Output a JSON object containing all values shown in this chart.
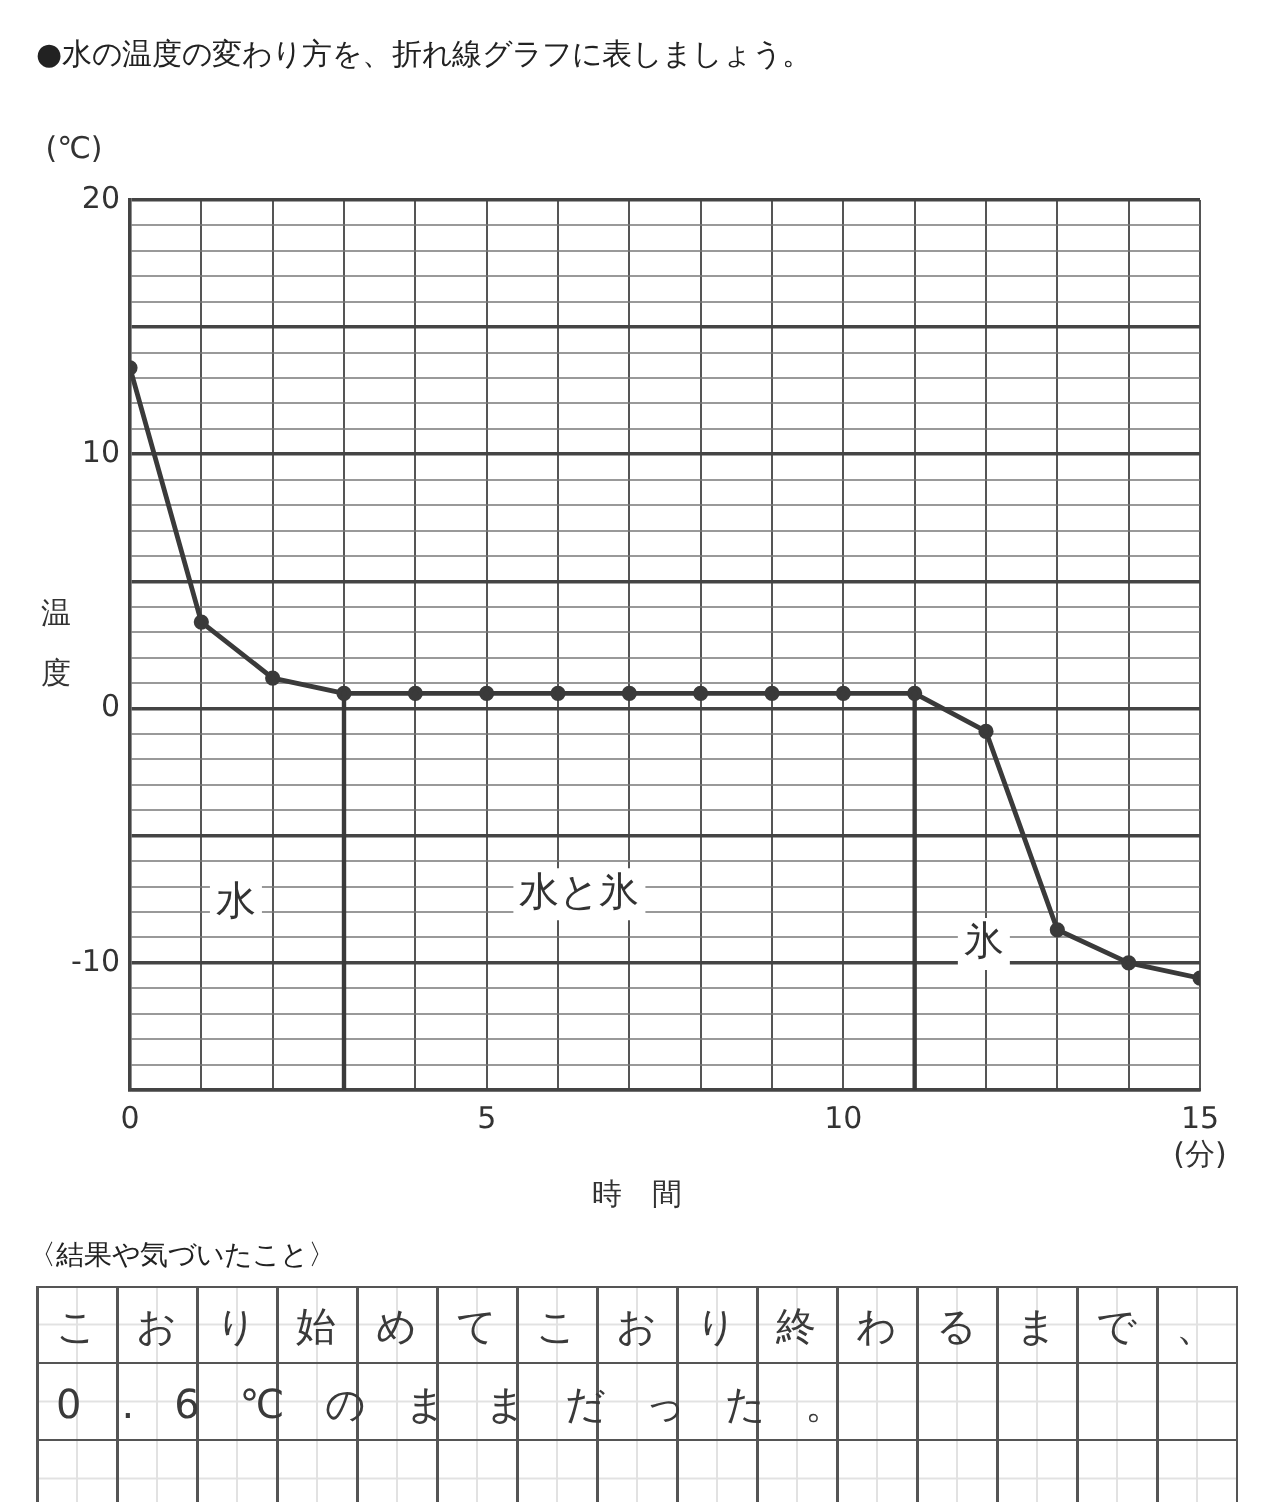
{
  "chart_data": {
    "type": "line",
    "title": "●水の温度の変わり方を、折れ線グラフに表しましょう。",
    "xlabel": "時　間",
    "ylabel": "温度",
    "x": [
      0,
      1,
      2,
      3,
      4,
      5,
      6,
      7,
      8,
      9,
      10,
      11,
      12,
      13,
      14,
      15
    ],
    "values": [
      13.4,
      3.4,
      1.2,
      0.6,
      0.6,
      0.6,
      0.6,
      0.6,
      0.6,
      0.6,
      0.6,
      0.6,
      -0.9,
      -8.7,
      -10,
      -10.6
    ],
    "color": "#3a3a3a",
    "marker": "circle",
    "xlim": [
      0,
      15
    ],
    "ylim": [
      -15,
      20
    ],
    "xticks": [
      0,
      {
        "value": 1,
        "label": null
      },
      {
        "value": 2,
        "label": null
      },
      {
        "value": 3,
        "label": null
      },
      {
        "value": 4,
        "label": null
      },
      5,
      {
        "value": 6,
        "label": null
      },
      {
        "value": 7,
        "label": null
      },
      {
        "value": 8,
        "label": null
      },
      {
        "value": 9,
        "label": null
      },
      10,
      {
        "value": 11,
        "label": null
      },
      {
        "value": 12,
        "label": null
      },
      {
        "value": 13,
        "label": null
      },
      {
        "value": 14,
        "label": null
      },
      15
    ],
    "yticks": [
      {
        "value": -15,
        "label": null
      },
      {
        "value": -14,
        "label": null
      },
      {
        "value": -13,
        "label": null
      },
      {
        "value": -12,
        "label": null
      },
      {
        "value": -11,
        "label": null
      },
      -10,
      {
        "value": -9,
        "label": null
      },
      {
        "value": -8,
        "label": null
      },
      {
        "value": -7,
        "label": null
      },
      {
        "value": -6,
        "label": null
      },
      {
        "value": -5,
        "label": null
      },
      {
        "value": -4,
        "label": null
      },
      {
        "value": -3,
        "label": null
      },
      {
        "value": -2,
        "label": null
      },
      {
        "value": -1,
        "label": null
      },
      0,
      {
        "value": 1,
        "label": null
      },
      {
        "value": 2,
        "label": null
      },
      {
        "value": 3,
        "label": null
      },
      {
        "value": 4,
        "label": null
      },
      {
        "value": 5,
        "label": null
      },
      {
        "value": 6,
        "label": null
      },
      {
        "value": 7,
        "label": null
      },
      {
        "value": 8,
        "label": null
      },
      {
        "value": 9,
        "label": null
      },
      10,
      {
        "value": 11,
        "label": null
      },
      {
        "value": 12,
        "label": null
      },
      {
        "value": 13,
        "label": null
      },
      {
        "value": 14,
        "label": null
      },
      {
        "value": 15,
        "label": null
      },
      {
        "value": 16,
        "label": null
      },
      {
        "value": 17,
        "label": null
      },
      {
        "value": 18,
        "label": null
      },
      {
        "value": 19,
        "label": null
      },
      20
    ],
    "grid": true,
    "ref_lines": [
      {
        "axis": "x",
        "value": 3,
        "color": "#3a3a3a"
      },
      {
        "axis": "x",
        "value": 11,
        "color": "#3a3a3a"
      }
    ],
    "annotations": [
      "(℃)",
      "(分)",
      "〈結果や気づいたこと〉",
      "こおり始めてこおり終わるまで、0.6℃のままだった。",
      "水",
      "水と氷",
      "氷"
    ]
  }
}
